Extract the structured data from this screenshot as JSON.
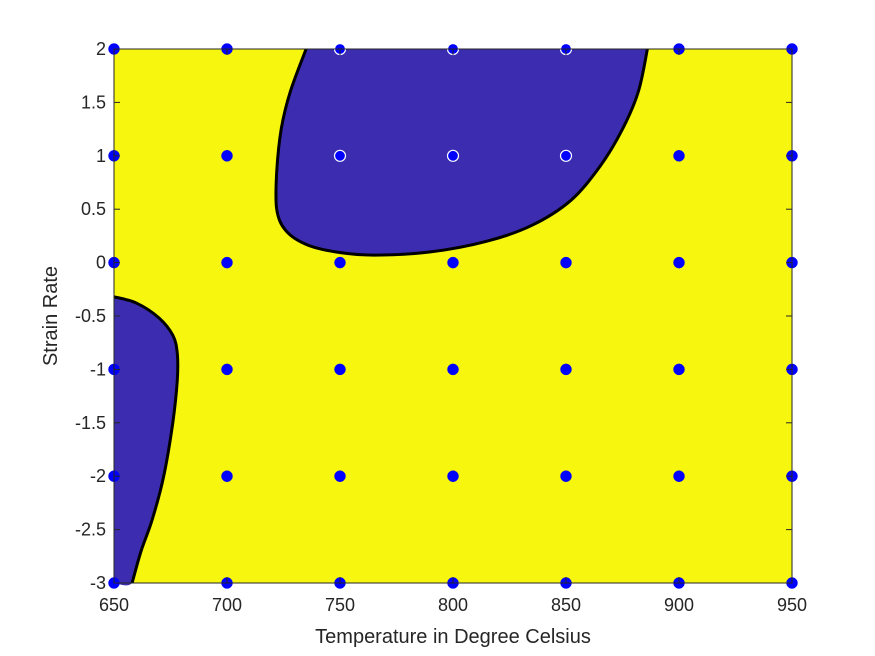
{
  "chart_data": {
    "type": "contour",
    "title": "",
    "xlabel": "Temperature in Degree Celsius",
    "ylabel": "Strain Rate",
    "xlim": [
      650,
      950
    ],
    "ylim": [
      -3,
      2
    ],
    "xticks": [
      650,
      700,
      750,
      800,
      850,
      900,
      950
    ],
    "yticks": [
      -3,
      -2.5,
      -2,
      -1.5,
      -1,
      -0.5,
      0,
      0.5,
      1,
      1.5,
      2
    ],
    "xtick_labels": [
      "650",
      "700",
      "750",
      "800",
      "850",
      "900",
      "950"
    ],
    "ytick_labels": [
      "-3",
      "-2.5",
      "-2",
      "-1.5",
      "-1",
      "-0.5",
      "0",
      "0.5",
      "1",
      "1.5",
      "2"
    ],
    "grid": false,
    "colors": {
      "background_region": "#f6f60f",
      "unstable_region": "#3c2db0",
      "boundary": "#000000",
      "marker": "#0000ff",
      "marker_edge_on_dark": "#ffffff"
    },
    "regions": [
      {
        "points": [
          [
            735,
            2
          ],
          [
            728,
            1.6
          ],
          [
            724,
            1.25
          ],
          [
            722,
            0.85
          ],
          [
            722,
            0.5
          ],
          [
            726,
            0.3
          ],
          [
            735,
            0.17
          ],
          [
            748,
            0.1
          ],
          [
            765,
            0.07
          ],
          [
            790,
            0.1
          ],
          [
            815,
            0.2
          ],
          [
            835,
            0.35
          ],
          [
            852,
            0.58
          ],
          [
            865,
            0.9
          ],
          [
            875,
            1.25
          ],
          [
            882,
            1.6
          ],
          [
            886,
            2
          ]
        ]
      },
      {
        "points": [
          [
            650,
            -0.32
          ],
          [
            660,
            -0.38
          ],
          [
            670,
            -0.52
          ],
          [
            676,
            -0.68
          ],
          [
            678,
            -0.85
          ],
          [
            678,
            -1.1
          ],
          [
            676,
            -1.5
          ],
          [
            672,
            -2.0
          ],
          [
            667,
            -2.4
          ],
          [
            662,
            -2.7
          ],
          [
            658,
            -3.0
          ],
          [
            650,
            -3.0
          ]
        ]
      }
    ],
    "points": {
      "x": [
        650,
        700,
        750,
        800,
        850,
        900,
        950
      ],
      "y": [
        -3,
        -2,
        -1,
        0,
        1,
        2
      ],
      "white_edge": [
        [
          750,
          1
        ],
        [
          800,
          1
        ],
        [
          850,
          1
        ],
        [
          750,
          2
        ],
        [
          800,
          2
        ],
        [
          850,
          2
        ]
      ]
    }
  }
}
